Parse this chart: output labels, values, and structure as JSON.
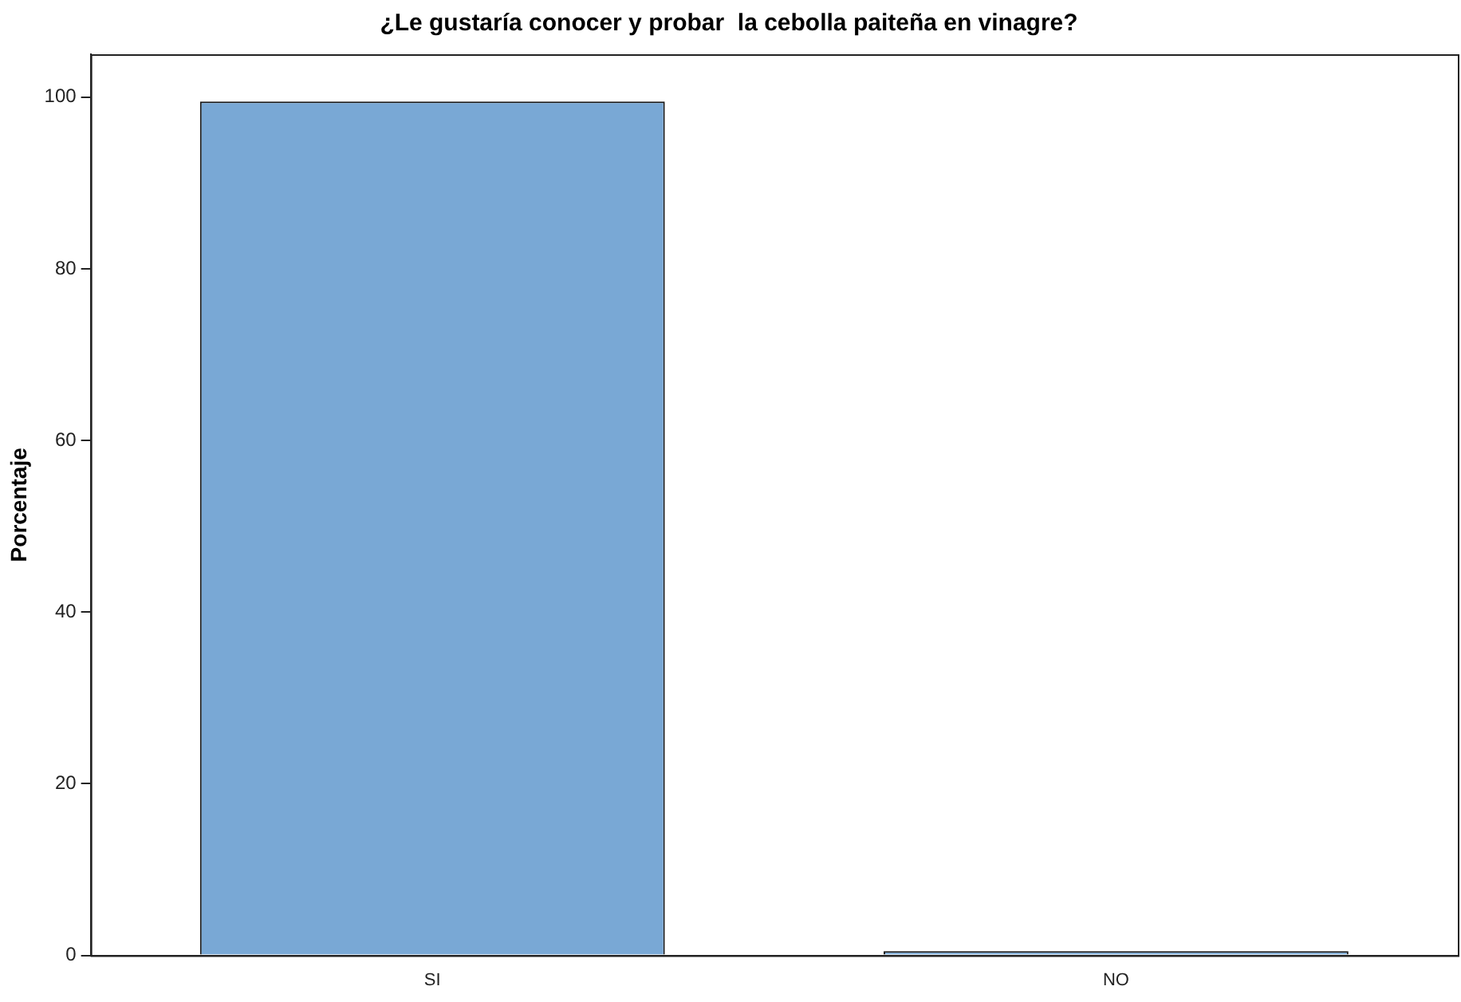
{
  "chart_data": {
    "type": "bar",
    "title": "¿Le gustaría conocer y probar  la cebolla paiteña en vinagre?",
    "ylabel": "Porcentaje",
    "categories": [
      "SI",
      "NO"
    ],
    "values": [
      99.5,
      0.5
    ],
    "color": "#79a8d5",
    "ylim": [
      0,
      105
    ],
    "yticks": [
      0,
      20,
      40,
      60,
      80,
      100
    ],
    "grid": false,
    "legend": false
  }
}
